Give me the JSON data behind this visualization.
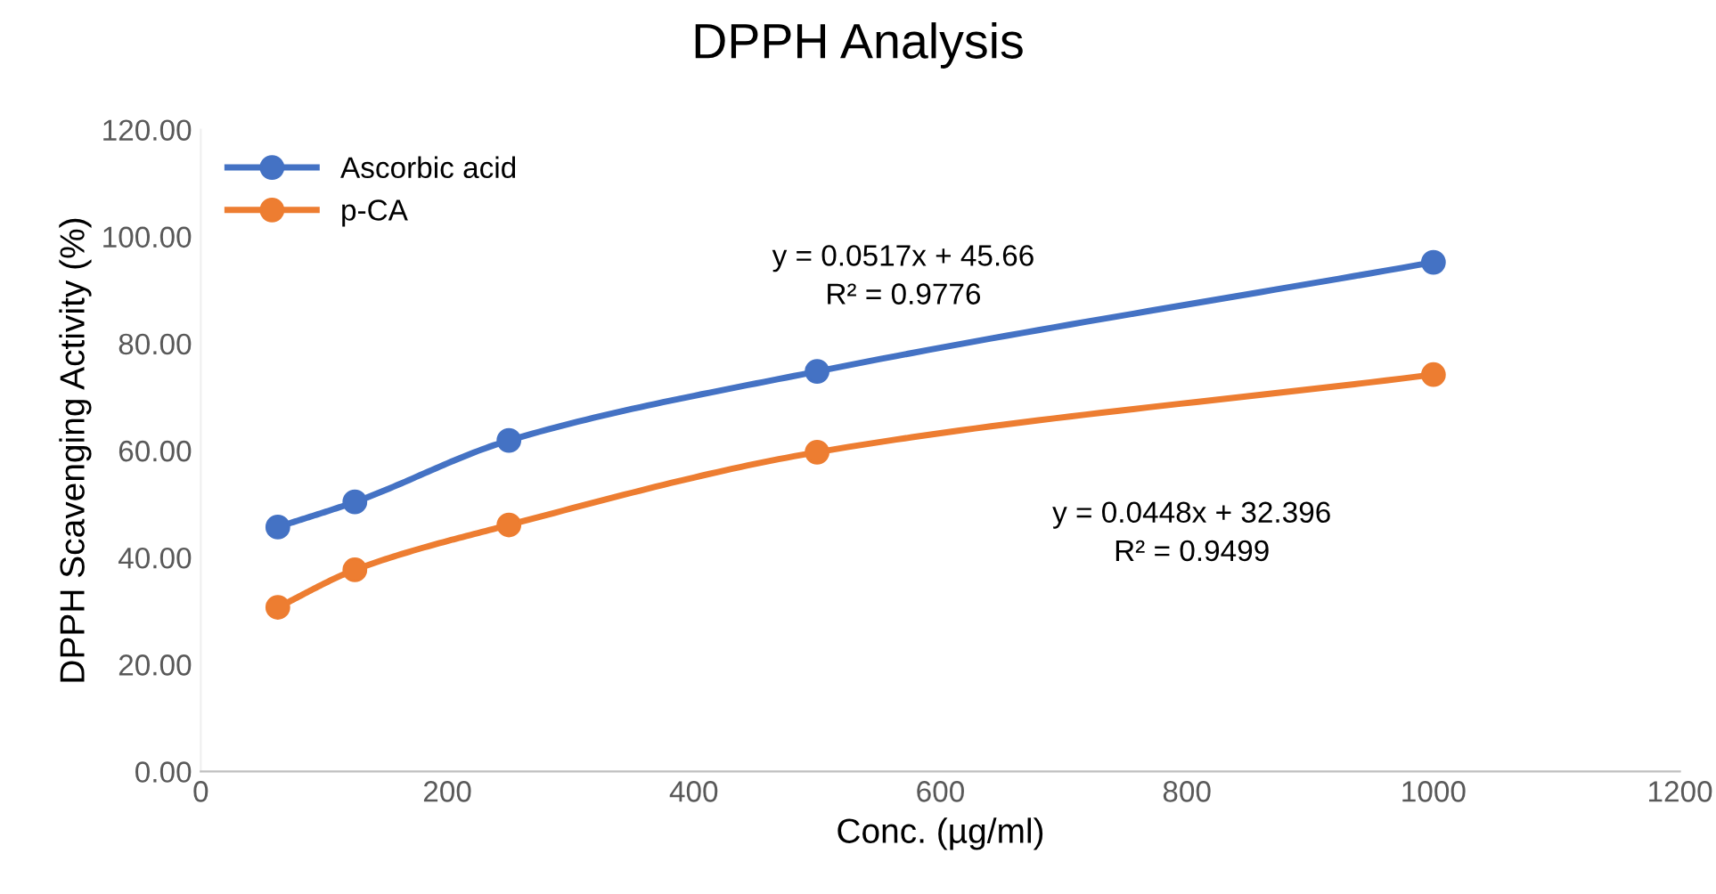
{
  "chart_data": {
    "type": "line",
    "title": "DPPH Analysis",
    "xlabel": "Conc. (µg/ml)",
    "ylabel": "DPPH Scavenging Activity (%)",
    "x": [
      62.5,
      125,
      250,
      500,
      1000
    ],
    "series": [
      {
        "name": "Ascorbic acid",
        "color": "#4472c4",
        "values": [
          45.7,
          50.4,
          61.9,
          74.8,
          95.2
        ]
      },
      {
        "name": "p-CA",
        "color": "#ed7d31",
        "values": [
          30.7,
          37.7,
          46.1,
          59.7,
          74.2
        ]
      }
    ],
    "xlim": [
      0,
      1200
    ],
    "xticks": [
      0,
      200,
      400,
      600,
      800,
      1000,
      1200
    ],
    "ylim": [
      0,
      120
    ],
    "yticks": [
      {
        "value": 0,
        "label": "0.00"
      },
      {
        "value": 20,
        "label": "20.00"
      },
      {
        "value": 40,
        "label": "40.00"
      },
      {
        "value": 60,
        "label": "60.00"
      },
      {
        "value": 80,
        "label": "80.00"
      },
      {
        "value": 100,
        "label": "100.00"
      },
      {
        "value": 120,
        "label": "120.00"
      }
    ],
    "annotations": [
      "y = 0.0517x + 45.66\nR² = 0.9776",
      "y = 0.0448x + 32.396\nR² = 0.9499"
    ],
    "marker": "circle",
    "line_style": "solid",
    "grid": false,
    "legend": "top left"
  }
}
